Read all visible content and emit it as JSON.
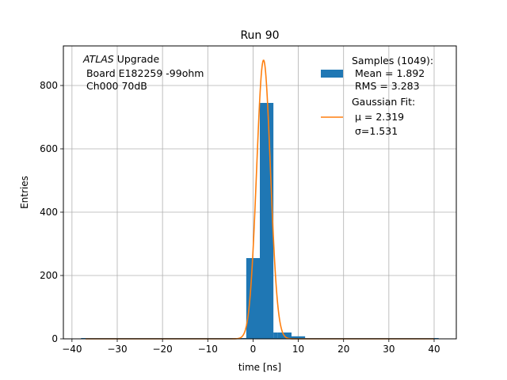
{
  "chart_data": {
    "type": "bar",
    "title": "Run 90",
    "xlabel": "time [ns]",
    "ylabel": "Entries",
    "xlim": [
      -41.9,
      44.9
    ],
    "ylim": [
      0,
      925
    ],
    "xticks": [
      -40,
      -30,
      -20,
      -10,
      0,
      10,
      20,
      30,
      40
    ],
    "yticks": [
      0,
      200,
      400,
      600,
      800
    ],
    "xtick_labels": [
      "−40",
      "−30",
      "−20",
      "−10",
      "0",
      "10",
      "20",
      "30",
      "40"
    ],
    "ytick_labels": [
      "0",
      "200",
      "400",
      "600",
      "800"
    ],
    "grid": true,
    "histogram": {
      "name": "Samples (1049):",
      "color": "#1f77b4",
      "bins": [
        {
          "x0": -1.5,
          "x1": 1.5,
          "count": 255
        },
        {
          "x0": 1.5,
          "x1": 4.5,
          "count": 745
        },
        {
          "x0": 4.5,
          "x1": 5.5,
          "count": 20
        },
        {
          "x0": 5.5,
          "x1": 8.5,
          "count": 20
        },
        {
          "x0": 8.5,
          "x1": 11.5,
          "count": 8
        }
      ]
    },
    "baseline_segment": {
      "x0": -38,
      "x1": 41,
      "color": "#1f77b4"
    },
    "fit": {
      "name": "Gaussian Fit:",
      "color": "#ff7f0e",
      "amplitude": 880,
      "mu": 2.319,
      "sigma": 1.531,
      "xrange": [
        -37,
        40
      ]
    },
    "annotation": {
      "line1_italic": "ATLAS",
      "line1_rest": " Upgrade",
      "line2": " Board E182259 -99ohm",
      "line3": " Ch000 70dB"
    },
    "legend": {
      "placement": "top-right",
      "hist_lines": [
        "Samples (1049):",
        " Mean = 1.892",
        " RMS = 3.283"
      ],
      "fit_lines": [
        "Gaussian Fit:",
        " μ = 2.319",
        " σ=1.531"
      ]
    }
  }
}
